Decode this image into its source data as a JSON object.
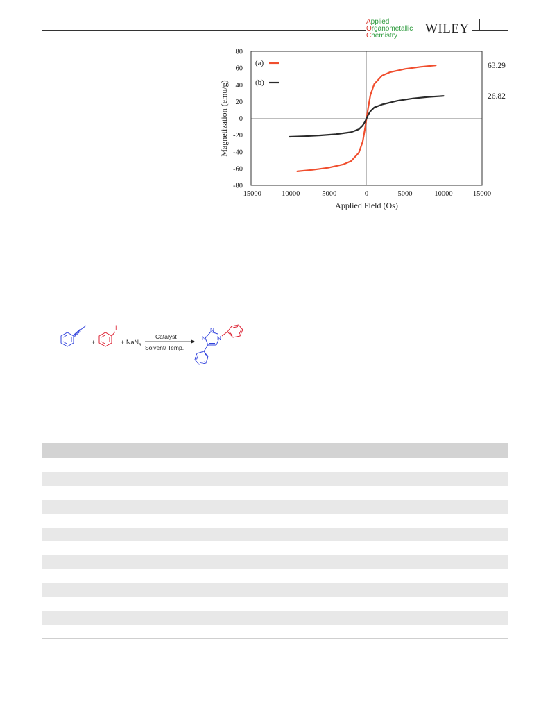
{
  "header": {
    "journal_logo": [
      "Applied",
      "Organometallic",
      "Chemistry"
    ],
    "publisher": "WILEY"
  },
  "chart_data": {
    "type": "line",
    "xlabel": "Applied Field (Os)",
    "ylabel": "Magnetization (emu/g)",
    "xlim": [
      -15000,
      15000
    ],
    "ylim": [
      -80,
      80
    ],
    "xticks": [
      -15000,
      -10000,
      -5000,
      0,
      5000,
      10000,
      15000
    ],
    "yticks": [
      -80,
      -60,
      -40,
      -20,
      0,
      20,
      40,
      60,
      80
    ],
    "grid": false,
    "legend_position": "top-left",
    "series": [
      {
        "name": "(a)",
        "color": "#f04e2e",
        "saturation_label": "63.29",
        "x": [
          -9000,
          -7000,
          -5000,
          -3000,
          -2000,
          -1000,
          -500,
          -200,
          0,
          200,
          500,
          1000,
          2000,
          3000,
          5000,
          7000,
          9000
        ],
        "y": [
          -63.3,
          -61.5,
          -59,
          -55,
          -51,
          -41,
          -28,
          -12,
          0,
          12,
          28,
          41,
          51,
          55,
          59,
          61.5,
          63.3
        ]
      },
      {
        "name": "(b)",
        "color": "#2a2a2a",
        "saturation_label": "26.82",
        "x": [
          -10000,
          -8000,
          -6000,
          -4000,
          -2000,
          -1000,
          -500,
          -200,
          0,
          200,
          500,
          1000,
          2000,
          4000,
          6000,
          8000,
          10000
        ],
        "y": [
          -22,
          -21.3,
          -20.3,
          -19,
          -16.5,
          -13,
          -8.5,
          -4,
          0,
          4,
          8.5,
          13,
          16.5,
          21,
          23.8,
          25.6,
          26.8
        ]
      }
    ]
  },
  "scheme": {
    "reagent_top": "Catalyst",
    "reagent_bottom": "Solvent/ Temp.",
    "plus": "+",
    "nan3_main": "NaN",
    "nan3_sub": "3",
    "iodo": "I",
    "atom_n": "N"
  },
  "table": {
    "row_count": 13
  }
}
